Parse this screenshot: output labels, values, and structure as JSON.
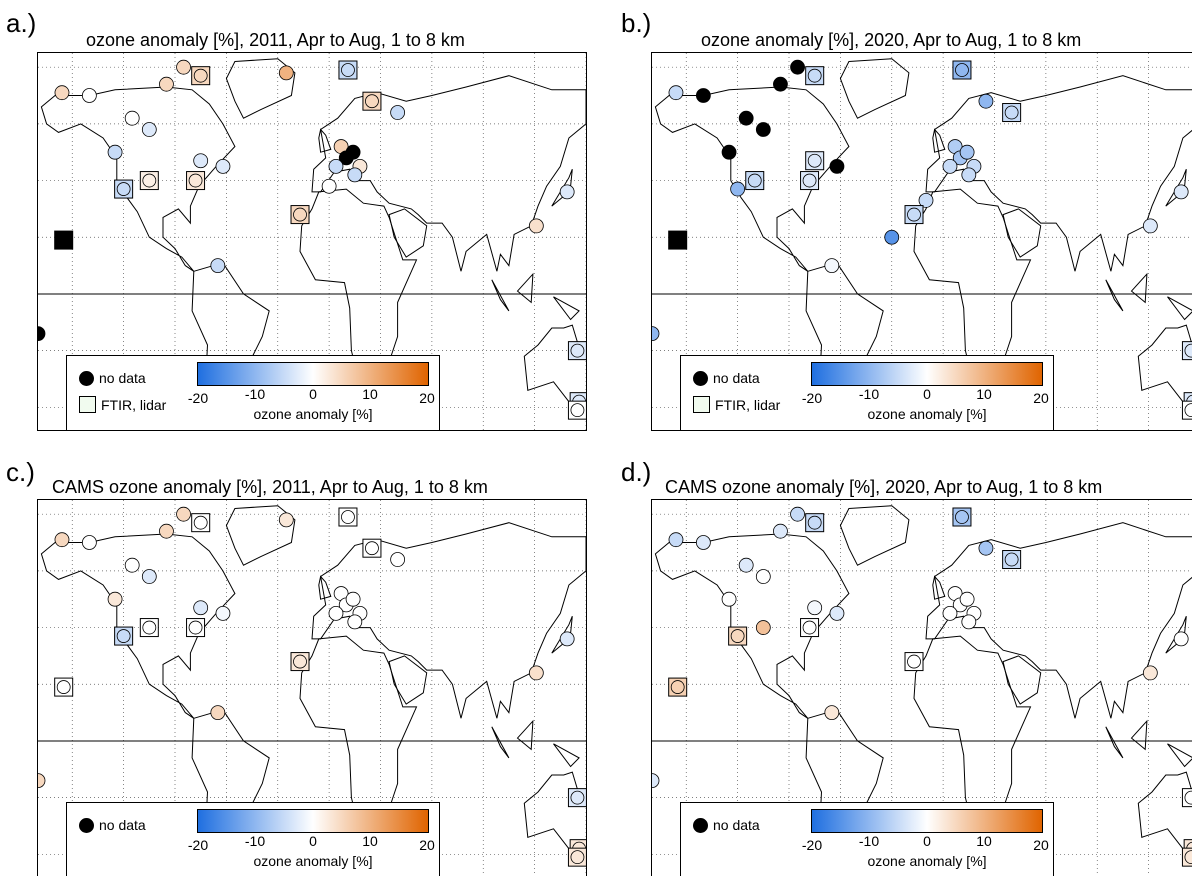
{
  "panels": [
    {
      "label": "a.)",
      "title": "ozone anomaly [%], 2011, Apr to Aug, 1 to 8 km"
    },
    {
      "label": "b.)",
      "title": "ozone anomaly [%], 2020, Apr to Aug, 1 to 8 km"
    },
    {
      "label": "c.)",
      "title": "CAMS ozone anomaly [%], 2011, Apr to Aug, 1 to 8 km"
    },
    {
      "label": "d.)",
      "title": "CAMS ozone anomaly [%], 2020, Apr to Aug, 1 to 8 km"
    }
  ],
  "legend": {
    "no_data": "no data",
    "ftir": "FTIR, lidar",
    "colorbar_title": "ozone anomaly [%]",
    "ticks": [
      "-20",
      "-10",
      "0",
      "10",
      "20"
    ]
  },
  "colors": {
    "scale_min": "#1f6fe0",
    "scale_zero": "#ffffff",
    "scale_max": "#e06400",
    "no_data": "#000000"
  }
}
